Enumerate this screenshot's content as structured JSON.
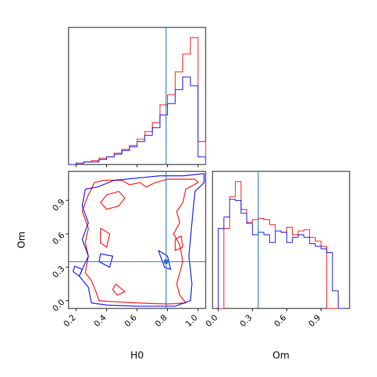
{
  "chart_data": {
    "type": "corner",
    "parameters": [
      "H0",
      "Om"
    ],
    "truths": {
      "H0": 0.79,
      "Om": 0.35
    },
    "colors": {
      "series_a": "#ff0000",
      "series_b": "#0000ff",
      "truth": "#1f77b4"
    },
    "panels": [
      {
        "id": "hist_H0",
        "type": "step-histogram",
        "parameter": "H0",
        "xlim": [
          0.15,
          1.05
        ],
        "ymax": 1.0,
        "bins": [
          0.15,
          0.2,
          0.25,
          0.3,
          0.35,
          0.4,
          0.45,
          0.5,
          0.55,
          0.6,
          0.65,
          0.7,
          0.75,
          0.8,
          0.85,
          0.9,
          0.95,
          1.0,
          1.05
        ],
        "series": [
          {
            "color_key": "series_a",
            "counts": [
              0.0,
              0.01,
              0.02,
              0.03,
              0.05,
              0.06,
              0.09,
              0.12,
              0.15,
              0.2,
              0.26,
              0.33,
              0.47,
              0.55,
              0.73,
              0.87,
              1.0,
              0.18
            ]
          },
          {
            "color_key": "series_b",
            "counts": [
              0.0,
              0.01,
              0.02,
              0.02,
              0.04,
              0.06,
              0.08,
              0.11,
              0.14,
              0.18,
              0.23,
              0.29,
              0.39,
              0.48,
              0.59,
              0.69,
              0.62,
              0.06
            ]
          }
        ],
        "xticks": [
          0.2,
          0.4,
          0.6,
          0.8,
          1.0
        ]
      },
      {
        "id": "hist_Om",
        "type": "step-histogram",
        "parameter": "Om",
        "xlim": [
          -0.05,
          1.15
        ],
        "ymax": 1.0,
        "bins": [
          0.0,
          0.05,
          0.1,
          0.15,
          0.2,
          0.25,
          0.3,
          0.35,
          0.4,
          0.45,
          0.5,
          0.55,
          0.6,
          0.65,
          0.7,
          0.75,
          0.8,
          0.85,
          0.9,
          0.95,
          1.0,
          1.05,
          1.1
        ],
        "series": [
          {
            "color_key": "series_a",
            "counts": [
              0.0,
              0.63,
              0.88,
              1.0,
              0.78,
              0.68,
              0.7,
              0.71,
              0.7,
              0.66,
              0.61,
              0.6,
              0.64,
              0.58,
              0.61,
              0.62,
              0.56,
              0.53,
              0.49,
              0.0,
              0.0,
              0.0
            ]
          },
          {
            "color_key": "series_b",
            "counts": [
              0.63,
              0.72,
              0.86,
              0.85,
              0.75,
              0.67,
              0.58,
              0.6,
              0.58,
              0.52,
              0.61,
              0.6,
              0.52,
              0.56,
              0.58,
              0.56,
              0.51,
              0.49,
              0.47,
              0.44,
              0.14,
              0.0
            ]
          }
        ],
        "xticks": [
          0.0,
          0.3,
          0.6,
          0.9
        ],
        "xtick_labels": [
          "0.0",
          "0.3",
          "0.6",
          "0.9"
        ],
        "xlabel": "Om"
      },
      {
        "id": "scatter_H0_Om",
        "type": "contour",
        "xparameter": "H0",
        "yparameter": "Om",
        "xlim": [
          0.15,
          1.05
        ],
        "ylim": [
          -0.07,
          1.16
        ],
        "xticks": [
          0.2,
          0.4,
          0.6,
          0.8,
          1.0
        ],
        "xtick_labels": [
          "0.2",
          "0.4",
          "0.6",
          "0.8",
          "1.0"
        ],
        "yticks": [
          0.0,
          0.3,
          0.6,
          0.9
        ],
        "ytick_labels": [
          "0.0",
          "0.3",
          "0.6",
          "0.9"
        ],
        "xlabel": "H0",
        "ylabel": "Om",
        "contours": [
          {
            "color_key": "series_a",
            "points": [
              [
                0.32,
                1.06
              ],
              [
                0.38,
                1.08
              ],
              [
                0.5,
                1.08
              ],
              [
                0.55,
                1.04
              ],
              [
                0.62,
                1.06
              ],
              [
                0.66,
                1.02
              ],
              [
                0.72,
                1.06
              ],
              [
                0.8,
                1.09
              ],
              [
                0.98,
                1.09
              ],
              [
                1.0,
                1.06
              ],
              [
                0.92,
                1.0
              ],
              [
                0.9,
                0.88
              ],
              [
                0.86,
                0.8
              ],
              [
                0.88,
                0.7
              ],
              [
                0.84,
                0.6
              ],
              [
                0.88,
                0.5
              ],
              [
                0.9,
                0.35
              ],
              [
                0.88,
                0.25
              ],
              [
                0.86,
                0.15
              ],
              [
                0.88,
                0.05
              ],
              [
                0.92,
                -0.02
              ],
              [
                0.8,
                -0.03
              ],
              [
                0.6,
                -0.02
              ],
              [
                0.45,
                -0.01
              ],
              [
                0.35,
                0.0
              ],
              [
                0.33,
                0.08
              ],
              [
                0.3,
                0.18
              ],
              [
                0.26,
                0.25
              ],
              [
                0.28,
                0.4
              ],
              [
                0.26,
                0.52
              ],
              [
                0.28,
                0.65
              ],
              [
                0.24,
                0.8
              ],
              [
                0.27,
                0.92
              ],
              [
                0.32,
                1.06
              ]
            ]
          },
          {
            "color_key": "series_a",
            "points": [
              [
                0.4,
                0.95
              ],
              [
                0.48,
                0.98
              ],
              [
                0.52,
                0.92
              ],
              [
                0.48,
                0.85
              ],
              [
                0.4,
                0.82
              ],
              [
                0.36,
                0.88
              ],
              [
                0.4,
                0.95
              ]
            ]
          },
          {
            "color_key": "series_a",
            "points": [
              [
                0.36,
                0.65
              ],
              [
                0.42,
                0.6
              ],
              [
                0.4,
                0.48
              ],
              [
                0.36,
                0.52
              ],
              [
                0.36,
                0.65
              ]
            ]
          },
          {
            "color_key": "series_a",
            "points": [
              [
                0.46,
                0.15
              ],
              [
                0.52,
                0.08
              ],
              [
                0.47,
                0.05
              ],
              [
                0.44,
                0.1
              ],
              [
                0.46,
                0.15
              ]
            ]
          },
          {
            "color_key": "series_a",
            "points": [
              [
                0.85,
                0.55
              ],
              [
                0.89,
                0.58
              ],
              [
                0.9,
                0.48
              ],
              [
                0.85,
                0.45
              ],
              [
                0.85,
                0.55
              ]
            ]
          },
          {
            "color_key": "series_b",
            "points": [
              [
                0.26,
                1.0
              ],
              [
                0.34,
                1.02
              ],
              [
                0.45,
                1.08
              ],
              [
                0.6,
                1.1
              ],
              [
                0.75,
                1.12
              ],
              [
                0.9,
                1.12
              ],
              [
                1.04,
                1.14
              ],
              [
                1.04,
                1.06
              ],
              [
                0.98,
                0.98
              ],
              [
                0.96,
                0.7
              ],
              [
                0.94,
                0.4
              ],
              [
                0.96,
                0.15
              ],
              [
                0.95,
                0.0
              ],
              [
                0.85,
                -0.05
              ],
              [
                0.6,
                -0.05
              ],
              [
                0.4,
                -0.04
              ],
              [
                0.3,
                -0.02
              ],
              [
                0.28,
                0.12
              ],
              [
                0.22,
                0.22
              ],
              [
                0.28,
                0.4
              ],
              [
                0.24,
                0.55
              ],
              [
                0.28,
                0.7
              ],
              [
                0.24,
                0.85
              ],
              [
                0.26,
                1.0
              ]
            ]
          },
          {
            "color_key": "series_b",
            "points": [
              [
                0.19,
                0.31
              ],
              [
                0.24,
                0.28
              ],
              [
                0.22,
                0.22
              ],
              [
                0.18,
                0.26
              ],
              [
                0.19,
                0.31
              ]
            ]
          },
          {
            "color_key": "series_b",
            "points": [
              [
                0.36,
                0.42
              ],
              [
                0.44,
                0.4
              ],
              [
                0.42,
                0.3
              ],
              [
                0.35,
                0.35
              ],
              [
                0.36,
                0.42
              ]
            ]
          },
          {
            "color_key": "series_b",
            "points": [
              [
                0.74,
                0.45
              ],
              [
                0.8,
                0.4
              ],
              [
                0.82,
                0.28
              ],
              [
                0.78,
                0.3
              ],
              [
                0.74,
                0.45
              ]
            ]
          }
        ]
      }
    ]
  }
}
